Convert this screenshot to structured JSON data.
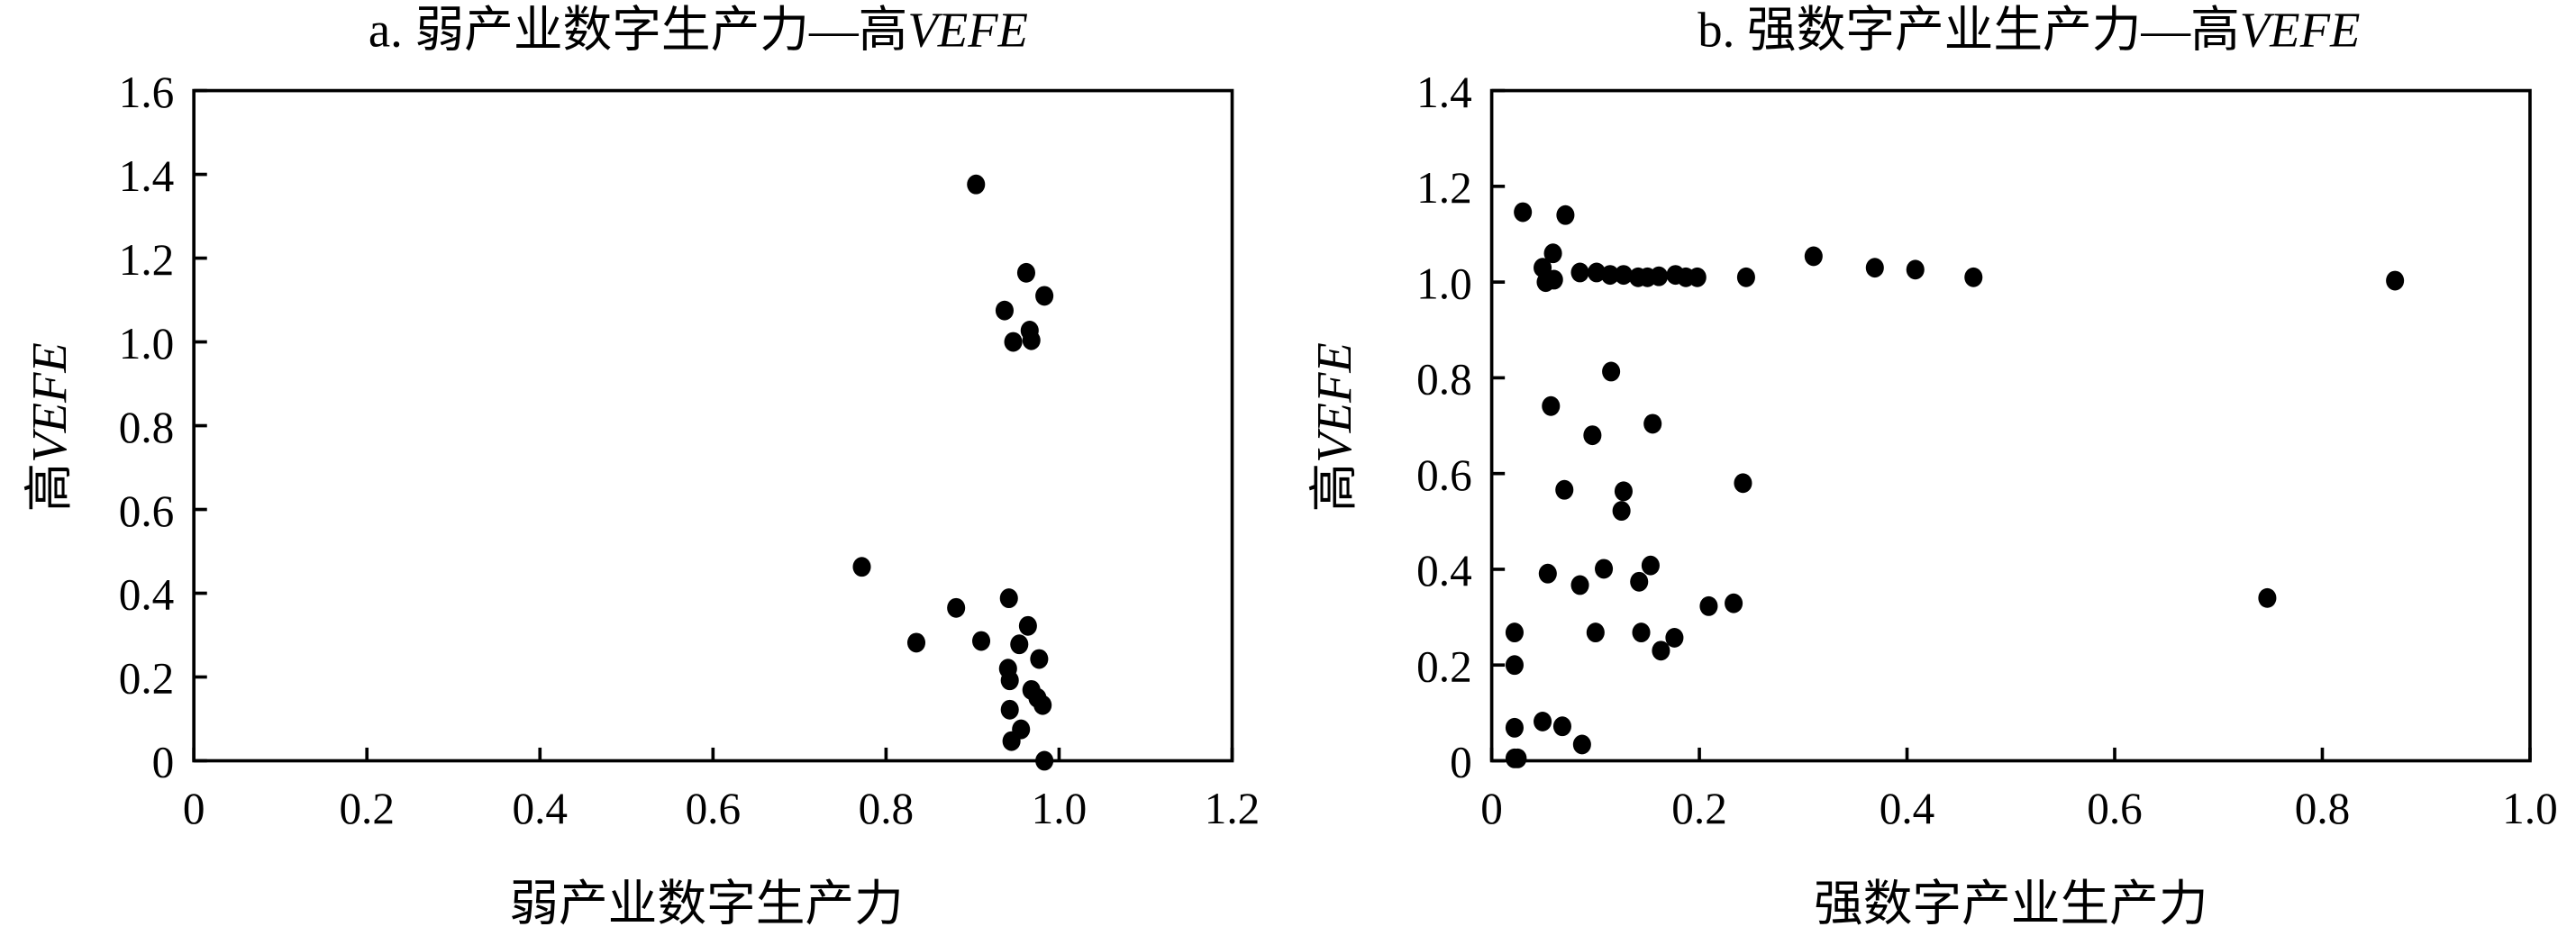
{
  "chart_data": [
    {
      "type": "scatter",
      "title_prefix": "a. 弱产业数字生产力—高",
      "title_italic": "VEFE",
      "xlabel": "弱产业数字生产力",
      "ylabel_prefix": "高",
      "ylabel_italic": "VEFE",
      "xlim": [
        0,
        1.2
      ],
      "ylim": [
        0,
        1.6
      ],
      "xticks": [
        "0",
        "0.2",
        "0.4",
        "0.6",
        "0.8",
        "1.0",
        "1.2"
      ],
      "yticks": [
        "0",
        "0.2",
        "0.4",
        "0.6",
        "0.8",
        "1.0",
        "1.2",
        "1.4",
        "1.6"
      ],
      "grid": false,
      "points": [
        [
          0.904,
          1.376
        ],
        [
          0.962,
          1.165
        ],
        [
          0.983,
          1.11
        ],
        [
          0.937,
          1.075
        ],
        [
          0.966,
          1.027
        ],
        [
          0.947,
          1.0
        ],
        [
          0.968,
          1.004
        ],
        [
          0.772,
          0.463
        ],
        [
          0.835,
          0.282
        ],
        [
          0.881,
          0.365
        ],
        [
          0.91,
          0.286
        ],
        [
          0.942,
          0.388
        ],
        [
          0.964,
          0.322
        ],
        [
          0.954,
          0.278
        ],
        [
          0.977,
          0.243
        ],
        [
          0.941,
          0.22
        ],
        [
          0.943,
          0.192
        ],
        [
          0.968,
          0.169
        ],
        [
          0.981,
          0.133
        ],
        [
          0.943,
          0.122
        ],
        [
          0.956,
          0.075
        ],
        [
          0.945,
          0.047
        ],
        [
          0.983,
          0.0
        ],
        [
          0.975,
          0.15
        ]
      ]
    },
    {
      "type": "scatter",
      "title_prefix": "b. 强数字产业生产力—高",
      "title_italic": "VEFE",
      "xlabel": "强数字产业生产力",
      "ylabel_prefix": "高",
      "ylabel_italic": "VEFE",
      "xlim": [
        0,
        1.0
      ],
      "ylim": [
        0,
        1.4
      ],
      "xticks": [
        "0",
        "0.2",
        "0.4",
        "0.6",
        "0.8",
        "1.0"
      ],
      "yticks": [
        "0",
        "0.2",
        "0.4",
        "0.6",
        "0.8",
        "1.0",
        "1.2",
        "1.4"
      ],
      "grid": false,
      "points": [
        [
          0.03,
          1.146
        ],
        [
          0.071,
          1.14
        ],
        [
          0.059,
          1.06
        ],
        [
          0.049,
          1.03
        ],
        [
          0.052,
          1.0
        ],
        [
          0.06,
          1.005
        ],
        [
          0.085,
          1.02
        ],
        [
          0.101,
          1.02
        ],
        [
          0.114,
          1.015
        ],
        [
          0.127,
          1.015
        ],
        [
          0.141,
          1.01
        ],
        [
          0.15,
          1.01
        ],
        [
          0.161,
          1.012
        ],
        [
          0.177,
          1.015
        ],
        [
          0.187,
          1.01
        ],
        [
          0.198,
          1.01
        ],
        [
          0.245,
          1.01
        ],
        [
          0.31,
          1.054
        ],
        [
          0.369,
          1.03
        ],
        [
          0.408,
          1.026
        ],
        [
          0.464,
          1.01
        ],
        [
          0.87,
          1.003
        ],
        [
          0.115,
          0.813
        ],
        [
          0.057,
          0.741
        ],
        [
          0.097,
          0.68
        ],
        [
          0.155,
          0.704
        ],
        [
          0.07,
          0.566
        ],
        [
          0.242,
          0.58
        ],
        [
          0.127,
          0.563
        ],
        [
          0.125,
          0.522
        ],
        [
          0.054,
          0.391
        ],
        [
          0.085,
          0.367
        ],
        [
          0.108,
          0.401
        ],
        [
          0.153,
          0.408
        ],
        [
          0.142,
          0.374
        ],
        [
          0.022,
          0.268
        ],
        [
          0.1,
          0.268
        ],
        [
          0.144,
          0.268
        ],
        [
          0.176,
          0.257
        ],
        [
          0.163,
          0.23
        ],
        [
          0.209,
          0.323
        ],
        [
          0.233,
          0.329
        ],
        [
          0.747,
          0.34
        ],
        [
          0.022,
          0.2
        ],
        [
          0.022,
          0.069
        ],
        [
          0.049,
          0.082
        ],
        [
          0.068,
          0.072
        ],
        [
          0.087,
          0.034
        ],
        [
          0.022,
          0.005
        ],
        [
          0.025,
          0.005
        ]
      ]
    }
  ]
}
